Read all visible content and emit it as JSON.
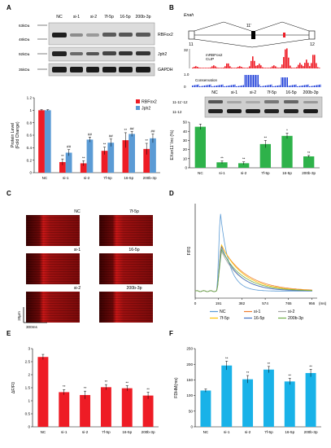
{
  "colors": {
    "red": "#ee1c25",
    "blue": "#5b9bd5",
    "green": "#2eb24a",
    "cyan": "#19b2e8",
    "blot_bg": "#d6d6d6",
    "band": "#1f1f1f",
    "heatmap_dark": "#2a0000",
    "heatmap_red": "#d41c1c"
  },
  "panels": {
    "A": {
      "label": "A",
      "lanes": [
        "NC",
        "si-1",
        "si-2",
        "7f-5p",
        "16-5p",
        "200b-3p"
      ],
      "markers": [
        "63kDa",
        "48kDa",
        "92kDa",
        "35kDa"
      ],
      "bands": [
        "RBFox2",
        "Jph2",
        "GAPDH"
      ]
    },
    "B": {
      "label": "B",
      "gene": "Enah",
      "exon_label": "11'",
      "exon_left": "11",
      "exon_right": "12",
      "clip_label_1": "mRBFox2",
      "clip_label_2": "CLIP",
      "clip_scale": "32",
      "cons_label": "Conservation",
      "cons_scale_top": "1.0",
      "cons_scale_bottom": "0",
      "lanes": [
        "NC",
        "si-1",
        "si-2",
        "7f-5p",
        "16-5p",
        "200b-3p"
      ],
      "band_1": "11-11'-12",
      "band_2": "11-12"
    },
    "C": {
      "label": "C",
      "titles": [
        "NC",
        "7f-5p",
        "si-1",
        "16-5p",
        "si-2",
        "200b-3p"
      ],
      "scale_y": "20μm",
      "scale_x": "300ms"
    },
    "D": {
      "label": "D",
      "legend": [
        "NC",
        "si-1",
        "si-2",
        "7f-5p",
        "16-5p",
        "200b-3p"
      ]
    },
    "E": {
      "label": "E"
    },
    "F": {
      "label": "F"
    }
  },
  "chart_data": [
    {
      "id": "A",
      "type": "bar",
      "ylabel": "Protein Level\n(Fold Change)",
      "ylim": [
        0,
        1.2
      ],
      "yticks": [
        "0",
        "0.2",
        "0.4",
        "0.6",
        "0.8",
        "1",
        "1.2"
      ],
      "categories": [
        "NC",
        "si-1",
        "si-2",
        "7f-5p",
        "16-5p",
        "200b-3p"
      ],
      "series": [
        {
          "name": "RBFox2",
          "color": "#ee1c25",
          "values": [
            1.0,
            0.17,
            0.15,
            0.35,
            0.52,
            0.38
          ],
          "err": [
            0.01,
            0.05,
            0.04,
            0.06,
            0.12,
            0.09
          ],
          "sig": [
            "",
            "**",
            "**",
            "**",
            "**",
            "**"
          ]
        },
        {
          "name": "Jph2",
          "color": "#5b9bd5",
          "values": [
            1.0,
            0.32,
            0.53,
            0.48,
            0.62,
            0.55
          ],
          "err": [
            0.01,
            0.05,
            0.04,
            0.06,
            0.04,
            0.07
          ],
          "sig": [
            "",
            "##",
            "##",
            "##",
            "##",
            "##"
          ]
        }
      ],
      "legend_position": "top-right"
    },
    {
      "id": "B",
      "type": "bar",
      "ylabel": "EXon11' Inc (%)",
      "ylim": [
        0,
        50
      ],
      "yticks": [
        "0",
        "10",
        "20",
        "30",
        "40",
        "50"
      ],
      "categories": [
        "NC",
        "si-1",
        "si-2",
        "7f-5p",
        "16-5p",
        "200b-3p"
      ],
      "values": [
        45,
        6,
        5,
        26,
        35,
        12.5
      ],
      "err": [
        3,
        1.5,
        1.5,
        4,
        3,
        1
      ],
      "sig": [
        "",
        "**",
        "**",
        "**",
        "*",
        "**"
      ],
      "color": "#2eb24a"
    },
    {
      "id": "D",
      "type": "line",
      "ylabel": "F/F0",
      "xlabel": "(ms)",
      "xticks": [
        "0",
        "191",
        "382",
        "574",
        "765",
        "956"
      ],
      "x_at_ticks": [
        0,
        191,
        382,
        574,
        765,
        956
      ],
      "series": [
        {
          "name": "NC",
          "color": "#5b9bd5",
          "peak": 3.3,
          "peak_t": 205,
          "decay": 70
        },
        {
          "name": "si-1",
          "color": "#ed7d31",
          "peak": 2.3,
          "peak_t": 215,
          "decay": 200
        },
        {
          "name": "si-2",
          "color": "#a5a5a5",
          "peak": 2.15,
          "peak_t": 215,
          "decay": 150
        },
        {
          "name": "7f-5p",
          "color": "#ffc000",
          "peak": 2.35,
          "peak_t": 212,
          "decay": 180
        },
        {
          "name": "16-5p",
          "color": "#4472c4",
          "peak": 2.3,
          "peak_t": 212,
          "decay": 140
        },
        {
          "name": "200b-3p",
          "color": "#70ad47",
          "peak": 2.2,
          "peak_t": 215,
          "decay": 170
        }
      ],
      "baseline": 1.0,
      "ylim": [
        0.8,
        3.5
      ]
    },
    {
      "id": "E",
      "type": "bar",
      "ylabel": "ΔF/F0",
      "ylim": [
        0,
        3
      ],
      "yticks": [
        "0",
        "0.5",
        "1",
        "1.5",
        "2",
        "2.5",
        "3"
      ],
      "categories": [
        "NC",
        "si-1",
        "si-2",
        "7f-5p",
        "16-5p",
        "200b-3p"
      ],
      "values": [
        2.68,
        1.33,
        1.22,
        1.52,
        1.48,
        1.2
      ],
      "err": [
        0.1,
        0.1,
        0.15,
        0.1,
        0.1,
        0.13
      ],
      "sig": [
        "",
        "**",
        "**",
        "**",
        "**",
        "**"
      ],
      "color": "#ee1c25"
    },
    {
      "id": "F",
      "type": "bar",
      "ylabel": "FDHM(ms)",
      "ylim": [
        0,
        250
      ],
      "yticks": [
        "0",
        "50",
        "100",
        "150",
        "200",
        "250"
      ],
      "categories": [
        "NC",
        "si-1",
        "si-2",
        "7f-5p",
        "16-5p",
        "200b-3p"
      ],
      "values": [
        116,
        196,
        152,
        183,
        145,
        172
      ],
      "err": [
        5,
        14,
        12,
        10,
        10,
        12
      ],
      "sig": [
        "",
        "**",
        "**",
        "**",
        "**",
        "**"
      ],
      "color": "#19b2e8"
    }
  ]
}
